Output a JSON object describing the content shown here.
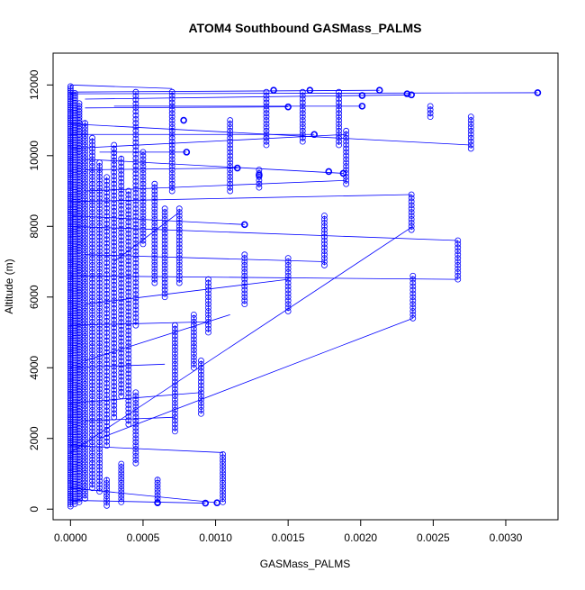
{
  "colors": {
    "series": "#0000ff",
    "axis": "#000000",
    "background": "#ffffff"
  },
  "chart_data": {
    "type": "scatter",
    "title": "ATOM4 Southbound GASMass_PALMS",
    "xlabel": "GASMass_PALMS",
    "ylabel": "Altitude (m)",
    "xlim": [
      -0.00012,
      0.00336
    ],
    "ylim": [
      -300,
      12900
    ],
    "grid": false,
    "legend": "none",
    "markers": "open circles joined by lines",
    "x_ticks": [
      0.0,
      0.0005,
      0.001,
      0.0015,
      0.002,
      0.0025,
      0.003
    ],
    "x_tick_labels": [
      "0.0000",
      "0.0005",
      "0.0010",
      "0.0015",
      "0.0020",
      "0.0025",
      "0.0030"
    ],
    "y_ticks": [
      0,
      2000,
      4000,
      6000,
      8000,
      10000,
      12000
    ],
    "y_tick_labels": [
      "0",
      "2000",
      "4000",
      "6000",
      "8000",
      "10000",
      "12000"
    ],
    "columns": [
      {
        "x": 0.0,
        "y0": 80,
        "y1": 12000,
        "step": 60
      },
      {
        "x": 3e-05,
        "y0": 150,
        "y1": 11800,
        "step": 70
      },
      {
        "x": 6e-05,
        "y0": 200,
        "y1": 11500,
        "step": 80
      },
      {
        "x": 0.0001,
        "y0": 300,
        "y1": 11000,
        "step": 90
      },
      {
        "x": 0.00015,
        "y0": 600,
        "y1": 10500,
        "step": 100
      },
      {
        "x": 0.0002,
        "y0": 500,
        "y1": 9800,
        "step": 100
      },
      {
        "x": 0.00025,
        "y0": 1800,
        "y1": 9400,
        "step": 110
      },
      {
        "x": 0.0003,
        "y0": 2600,
        "y1": 10300,
        "step": 110
      },
      {
        "x": 0.00035,
        "y0": 3200,
        "y1": 10000,
        "step": 110
      },
      {
        "x": 0.0004,
        "y0": 2400,
        "y1": 9000,
        "step": 110
      },
      {
        "x": 0.00045,
        "y0": 5200,
        "y1": 11800,
        "step": 110
      },
      {
        "x": 0.00025,
        "y0": 100,
        "y1": 900,
        "step": 90
      },
      {
        "x": 0.00035,
        "y0": 200,
        "y1": 1300,
        "step": 90
      },
      {
        "x": 0.00045,
        "y0": 1300,
        "y1": 3300,
        "step": 100
      },
      {
        "x": 0.0005,
        "y0": 7500,
        "y1": 10100,
        "step": 100
      },
      {
        "x": 0.00058,
        "y0": 6400,
        "y1": 9200,
        "step": 100
      },
      {
        "x": 0.0006,
        "y0": 200,
        "y1": 900,
        "step": 90
      },
      {
        "x": 0.00065,
        "y0": 6000,
        "y1": 8500,
        "step": 100
      },
      {
        "x": 0.0007,
        "y0": 9000,
        "y1": 11800,
        "step": 100
      },
      {
        "x": 0.00072,
        "y0": 2200,
        "y1": 5200,
        "step": 100
      },
      {
        "x": 0.00075,
        "y0": 6400,
        "y1": 8500,
        "step": 100
      },
      {
        "x": 0.00085,
        "y0": 4000,
        "y1": 5500,
        "step": 100
      },
      {
        "x": 0.0009,
        "y0": 2700,
        "y1": 4200,
        "step": 100
      },
      {
        "x": 0.00095,
        "y0": 5000,
        "y1": 6500,
        "step": 100
      },
      {
        "x": 0.00105,
        "y0": 200,
        "y1": 1600,
        "step": 90
      },
      {
        "x": 0.0011,
        "y0": 9000,
        "y1": 11000,
        "step": 100
      },
      {
        "x": 0.0012,
        "y0": 5800,
        "y1": 7200,
        "step": 100
      },
      {
        "x": 0.0013,
        "y0": 9100,
        "y1": 9600,
        "step": 100
      },
      {
        "x": 0.00135,
        "y0": 10300,
        "y1": 11800,
        "step": 100
      },
      {
        "x": 0.0015,
        "y0": 5600,
        "y1": 7100,
        "step": 100
      },
      {
        "x": 0.0016,
        "y0": 10400,
        "y1": 11800,
        "step": 100
      },
      {
        "x": 0.00175,
        "y0": 6900,
        "y1": 8300,
        "step": 100
      },
      {
        "x": 0.00185,
        "y0": 10300,
        "y1": 11800,
        "step": 100
      },
      {
        "x": 0.0019,
        "y0": 9200,
        "y1": 10700,
        "step": 100
      },
      {
        "x": 0.00235,
        "y0": 7900,
        "y1": 8900,
        "step": 100
      },
      {
        "x": 0.00236,
        "y0": 5400,
        "y1": 6600,
        "step": 100
      },
      {
        "x": 0.00248,
        "y0": 11100,
        "y1": 11400,
        "step": 100
      },
      {
        "x": 0.00267,
        "y0": 6500,
        "y1": 7600,
        "step": 100
      },
      {
        "x": 0.00276,
        "y0": 10200,
        "y1": 11100,
        "step": 100
      }
    ],
    "isolated_points": [
      {
        "x": 0.00322,
        "y": 11780
      },
      {
        "x": 0.00213,
        "y": 11850
      },
      {
        "x": 0.00232,
        "y": 11750
      },
      {
        "x": 0.00235,
        "y": 11720
      },
      {
        "x": 0.00201,
        "y": 11400
      },
      {
        "x": 0.00201,
        "y": 11700
      },
      {
        "x": 0.00168,
        "y": 10600
      },
      {
        "x": 0.00178,
        "y": 9550
      },
      {
        "x": 0.00188,
        "y": 9500
      },
      {
        "x": 0.0015,
        "y": 11380
      },
      {
        "x": 0.0014,
        "y": 11850
      },
      {
        "x": 0.00165,
        "y": 11850
      },
      {
        "x": 0.00101,
        "y": 180
      },
      {
        "x": 0.00093,
        "y": 170
      },
      {
        "x": 0.00078,
        "y": 11000
      },
      {
        "x": 0.00115,
        "y": 9650
      },
      {
        "x": 0.0013,
        "y": 9450
      },
      {
        "x": 0.0012,
        "y": 8050
      },
      {
        "x": 0.0008,
        "y": 10100
      },
      {
        "x": 0.0006,
        "y": 180
      }
    ],
    "connector_segments": [
      {
        "x1": 0.0,
        "y1": 11750,
        "x2": 0.00322,
        "y2": 11780
      },
      {
        "x1": 2e-05,
        "y1": 11800,
        "x2": 0.00213,
        "y2": 11850
      },
      {
        "x1": 0.0001,
        "y1": 11600,
        "x2": 0.00235,
        "y2": 11720
      },
      {
        "x1": 0.0001,
        "y1": 11350,
        "x2": 0.0015,
        "y2": 11380
      },
      {
        "x1": 0.0003,
        "y1": 11400,
        "x2": 0.00201,
        "y2": 11400
      },
      {
        "x1": 0.0,
        "y1": 10900,
        "x2": 0.00276,
        "y2": 10300
      },
      {
        "x1": 0.0,
        "y1": 10600,
        "x2": 0.00168,
        "y2": 10600
      },
      {
        "x1": 0.0001,
        "y1": 9900,
        "x2": 0.00188,
        "y2": 9500
      },
      {
        "x1": 0.0001,
        "y1": 9000,
        "x2": 0.0019,
        "y2": 9300
      },
      {
        "x1": 0.0,
        "y1": 8700,
        "x2": 0.00235,
        "y2": 8900
      },
      {
        "x1": 0.0,
        "y1": 8000,
        "x2": 0.00267,
        "y2": 7600
      },
      {
        "x1": 0.0001,
        "y1": 7200,
        "x2": 0.00175,
        "y2": 7000
      },
      {
        "x1": 0.0,
        "y1": 6600,
        "x2": 0.00267,
        "y2": 6500
      },
      {
        "x1": 0.0001,
        "y1": 5800,
        "x2": 0.0015,
        "y2": 6500
      },
      {
        "x1": 0.0,
        "y1": 1600,
        "x2": 0.00236,
        "y2": 8000
      },
      {
        "x1": 0.0002,
        "y1": 2000,
        "x2": 0.00236,
        "y2": 5400
      },
      {
        "x1": 0.0001,
        "y1": 4200,
        "x2": 0.0011,
        "y2": 5500
      },
      {
        "x1": 0.0,
        "y1": 5200,
        "x2": 0.00095,
        "y2": 5300
      },
      {
        "x1": 0.0,
        "y1": 3000,
        "x2": 0.0009,
        "y2": 3300
      },
      {
        "x1": 0.0,
        "y1": 1800,
        "x2": 0.00105,
        "y2": 1600
      },
      {
        "x1": 0.0,
        "y1": 600,
        "x2": 0.00101,
        "y2": 180
      },
      {
        "x1": 0.0,
        "y1": 250,
        "x2": 0.00093,
        "y2": 170
      },
      {
        "x1": 0.0001,
        "y1": 9600,
        "x2": 0.00115,
        "y2": 9650
      },
      {
        "x1": 0.0002,
        "y1": 10100,
        "x2": 0.0008,
        "y2": 10100
      },
      {
        "x1": 0.0,
        "y1": 10200,
        "x2": 0.0019,
        "y2": 10600
      },
      {
        "x1": 0.0,
        "y1": 8300,
        "x2": 0.0012,
        "y2": 8050
      },
      {
        "x1": 0.0003,
        "y1": 7000,
        "x2": 0.00075,
        "y2": 8400
      },
      {
        "x1": 0.0,
        "y1": 4000,
        "x2": 0.00065,
        "y2": 4100
      },
      {
        "x1": 0.0001,
        "y1": 2500,
        "x2": 0.00072,
        "y2": 2600
      },
      {
        "x1": 0.0,
        "y1": 12000,
        "x2": 0.0007,
        "y2": 11900
      }
    ]
  }
}
